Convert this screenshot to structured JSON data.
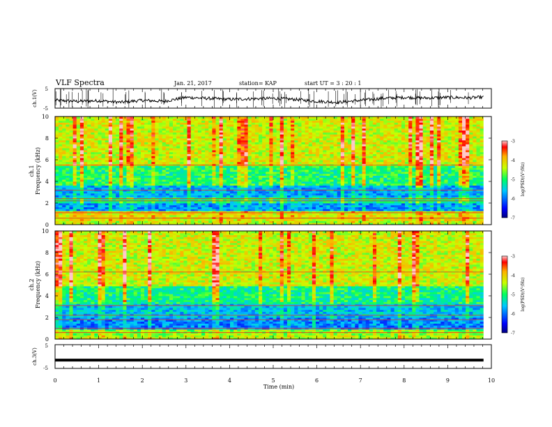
{
  "header": {
    "title": "VLF Spectra",
    "date": "Jan. 21, 2017",
    "station": "station= KAP",
    "start": "start  UT  =   3  : 20 : 1"
  },
  "chart_data": [
    {
      "type": "line",
      "title": "",
      "ylabel": "ch.1(V)",
      "xlim": [
        0,
        10
      ],
      "ylim": [
        -5,
        5
      ],
      "yticks": [
        "5",
        "-5"
      ],
      "x": [
        0.0,
        0.5,
        1.0,
        1.5,
        2.0,
        2.5,
        3.0,
        3.5,
        4.0,
        4.5,
        5.0,
        5.5,
        6.0,
        6.5,
        7.0,
        7.5,
        8.0,
        8.5,
        9.0,
        9.5,
        9.82
      ],
      "values": [
        -1.0,
        -1.5,
        -1.2,
        -2.0,
        -1.0,
        -1.5,
        0.5,
        0.0,
        -0.5,
        -0.2,
        0.0,
        -0.5,
        -1.5,
        -2.0,
        -1.0,
        0.0,
        0.5,
        0.2,
        0.5,
        0.3,
        0.6
      ],
      "note_burst_spikes": true
    },
    {
      "type": "heatmap",
      "ylabel_line1": "ch.1",
      "ylabel_line2": "Frequency  (kHz)",
      "xlim": [
        0,
        9.82
      ],
      "ylim": [
        0,
        10
      ],
      "yticks": [
        "0",
        "2",
        "4",
        "6",
        "8",
        "10"
      ],
      "colorbar": {
        "label": "log(PSD)(V²/Hz)",
        "range": [
          -7,
          -3
        ],
        "ticks": [
          "-3",
          "-4",
          "-5",
          "-6",
          "-7"
        ]
      },
      "lines_khz": [
        0.6,
        1.1,
        2.2,
        2.4,
        3.2,
        5.5
      ],
      "levels_by_band": [
        {
          "from": 0.0,
          "to": 0.4,
          "level": -4.4
        },
        {
          "from": 0.4,
          "to": 1.2,
          "level": -4.2
        },
        {
          "from": 1.2,
          "to": 2.0,
          "level": -5.8
        },
        {
          "from": 2.0,
          "to": 2.6,
          "level": -5.2
        },
        {
          "from": 2.6,
          "to": 3.6,
          "level": -5.7
        },
        {
          "from": 3.6,
          "to": 5.5,
          "level": -5.0
        },
        {
          "from": 5.5,
          "to": 10.0,
          "level": -4.3
        }
      ]
    },
    {
      "type": "heatmap",
      "ylabel_line1": "ch.2",
      "ylabel_line2": "Frequency  (kHz)",
      "xlim": [
        0,
        9.82
      ],
      "ylim": [
        0,
        10
      ],
      "yticks": [
        "0",
        "2",
        "4",
        "6",
        "8",
        "10"
      ],
      "colorbar": {
        "label": "log(PSD)(V²/Hz)",
        "range": [
          -7,
          -3
        ],
        "ticks": [
          "-3",
          "-4",
          "-5",
          "-6",
          "-7"
        ]
      },
      "lines_khz": [
        0.6,
        1.0,
        1.8,
        2.2,
        3.1,
        6.2
      ],
      "levels_by_band": [
        {
          "from": 0.0,
          "to": 0.4,
          "level": -4.4
        },
        {
          "from": 0.4,
          "to": 1.0,
          "level": -4.6
        },
        {
          "from": 1.0,
          "to": 2.0,
          "level": -5.9
        },
        {
          "from": 2.0,
          "to": 3.2,
          "level": -5.6
        },
        {
          "from": 3.2,
          "to": 5.0,
          "level": -5.1
        },
        {
          "from": 5.0,
          "to": 10.0,
          "level": -4.3
        }
      ]
    },
    {
      "type": "line",
      "ylabel": "ch.3(V)",
      "xlim": [
        0,
        10
      ],
      "ylim": [
        -5,
        5
      ],
      "yticks": [
        "5",
        "-5"
      ],
      "x": [
        0,
        9.82
      ],
      "values": [
        -1.5,
        -1.5
      ]
    }
  ],
  "x_axis": {
    "label": "Time  (min)",
    "ticks": [
      "0",
      "1",
      "2",
      "3",
      "4",
      "5",
      "6",
      "7",
      "8",
      "9",
      "10"
    ],
    "range": [
      0,
      10
    ]
  }
}
